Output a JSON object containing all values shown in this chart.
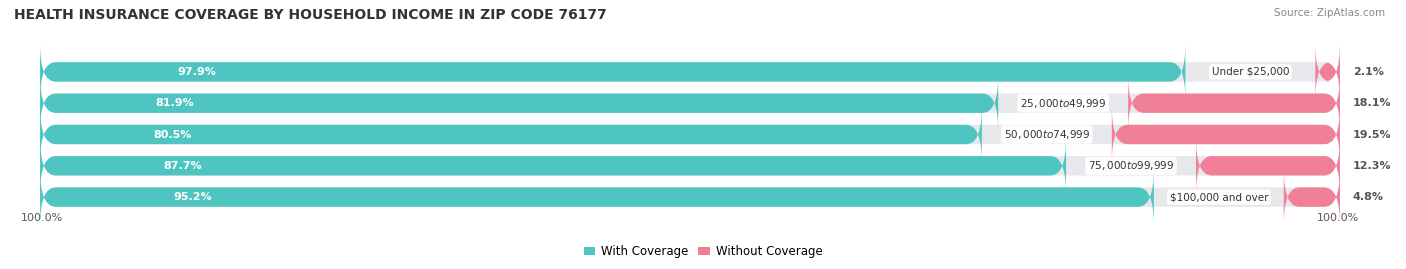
{
  "title": "HEALTH INSURANCE COVERAGE BY HOUSEHOLD INCOME IN ZIP CODE 76177",
  "source": "Source: ZipAtlas.com",
  "categories": [
    "Under $25,000",
    "$25,000 to $49,999",
    "$50,000 to $74,999",
    "$75,000 to $99,999",
    "$100,000 and over"
  ],
  "with_coverage": [
    97.9,
    81.9,
    80.5,
    87.7,
    95.2
  ],
  "without_coverage": [
    2.1,
    18.1,
    19.5,
    12.3,
    4.8
  ],
  "color_with": "#4EC5C1",
  "color_without": "#F08098",
  "color_bg_bar": "#E8E8EC",
  "background_color": "#FFFFFF",
  "label_color_with": "#FFFFFF",
  "label_color_dark": "#555555",
  "left_label": "100.0%",
  "right_label": "100.0%",
  "title_fontsize": 10,
  "bar_label_fontsize": 8,
  "cat_label_fontsize": 7.5,
  "pct_label_fontsize": 8,
  "legend_fontsize": 8.5,
  "source_fontsize": 7.5
}
